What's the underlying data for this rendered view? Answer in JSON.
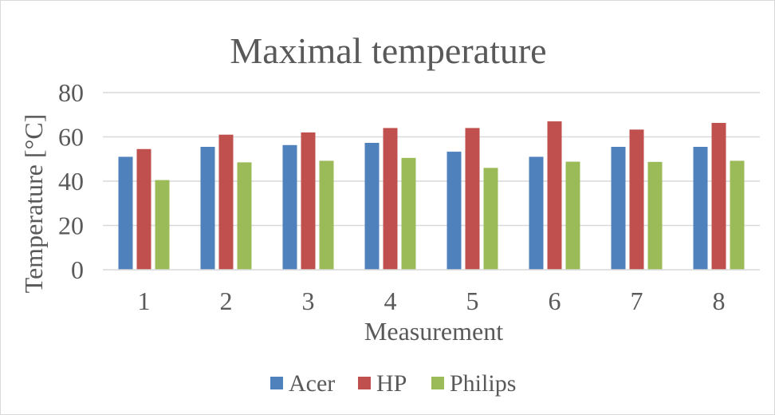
{
  "chart_data": {
    "type": "bar",
    "title": "Maximal temperature",
    "xlabel": "Measurement",
    "ylabel": "Temperature [°C]",
    "categories": [
      "1",
      "2",
      "3",
      "4",
      "5",
      "6",
      "7",
      "8"
    ],
    "ylim": [
      0,
      80
    ],
    "yticks": [
      "0",
      "20",
      "40",
      "60",
      "80"
    ],
    "grid": true,
    "legend_position": "bottom",
    "series": [
      {
        "name": "Acer",
        "color": "#4f81bd",
        "values": [
          51,
          55.5,
          56.3,
          57.3,
          53.3,
          51,
          55.5,
          55.5
        ]
      },
      {
        "name": "HP",
        "color": "#c0504d",
        "values": [
          54.5,
          61,
          62,
          64,
          64,
          67,
          63.3,
          66.3
        ]
      },
      {
        "name": "Philips",
        "color": "#9bbb59",
        "values": [
          40.5,
          48.5,
          49.2,
          50.5,
          46,
          48.8,
          48.7,
          49.2
        ]
      }
    ]
  }
}
